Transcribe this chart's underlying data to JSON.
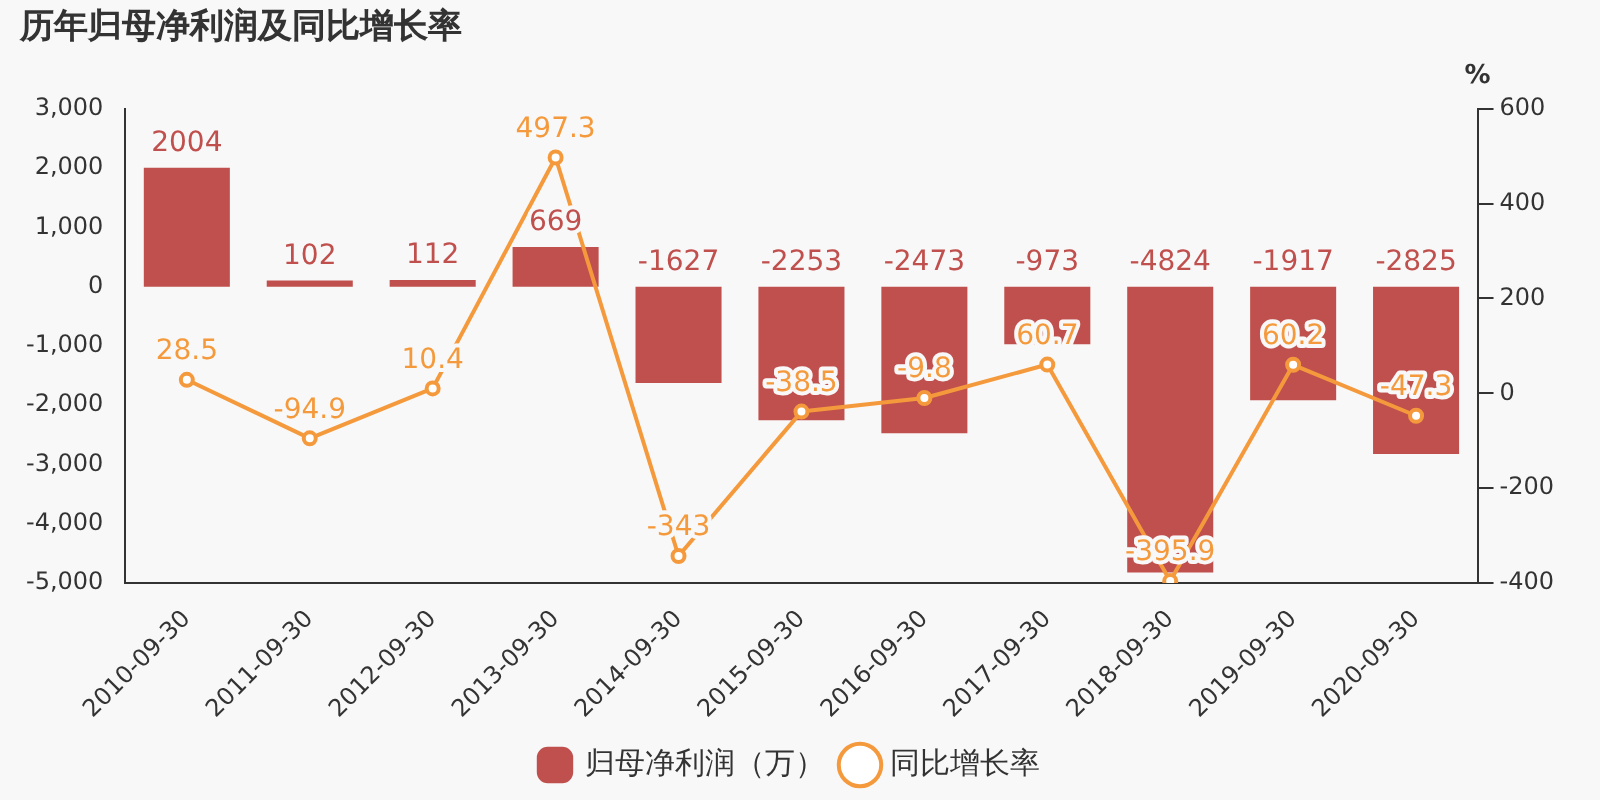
{
  "chart_data": {
    "type": "bar",
    "title": "历年归母净利润及同比增长率",
    "y2label": "%",
    "categories": [
      "2010-09-30",
      "2011-09-30",
      "2012-09-30",
      "2013-09-30",
      "2014-09-30",
      "2015-09-30",
      "2016-09-30",
      "2017-09-30",
      "2018-09-30",
      "2019-09-30",
      "2020-09-30"
    ],
    "series": [
      {
        "name": "归母净利润（万）",
        "color": "#c0504d",
        "values": [
          2004,
          102,
          112,
          669,
          -1627,
          -2253,
          -2473,
          -973,
          -4824,
          -1917,
          -2825
        ]
      },
      {
        "name": "同比增长率",
        "type": "line",
        "axis": "y2",
        "color": "#f59a3c",
        "marker": "circle",
        "values": [
          28.5,
          -94.9,
          10.4,
          497.3,
          -343,
          -38.5,
          -9.8,
          60.7,
          -395.9,
          60.2,
          -47.3
        ]
      }
    ],
    "ylim": [
      -5000,
      3000
    ],
    "yticks": [
      {
        "value": -5000,
        "label": "-5,000"
      },
      {
        "value": -4000,
        "label": "-4,000"
      },
      {
        "value": -3000,
        "label": "-3,000"
      },
      {
        "value": -2000,
        "label": "-2,000"
      },
      {
        "value": -1000,
        "label": "-1,000"
      },
      0,
      {
        "value": 1000,
        "label": "1,000"
      },
      {
        "value": 2000,
        "label": "2,000"
      },
      {
        "value": 3000,
        "label": "3,000"
      }
    ],
    "y2lim": [
      -400,
      600
    ],
    "y2ticks": [
      -400,
      -200,
      0,
      200,
      400,
      600
    ],
    "data_labels": true,
    "grid": false,
    "legend": "bottom"
  }
}
